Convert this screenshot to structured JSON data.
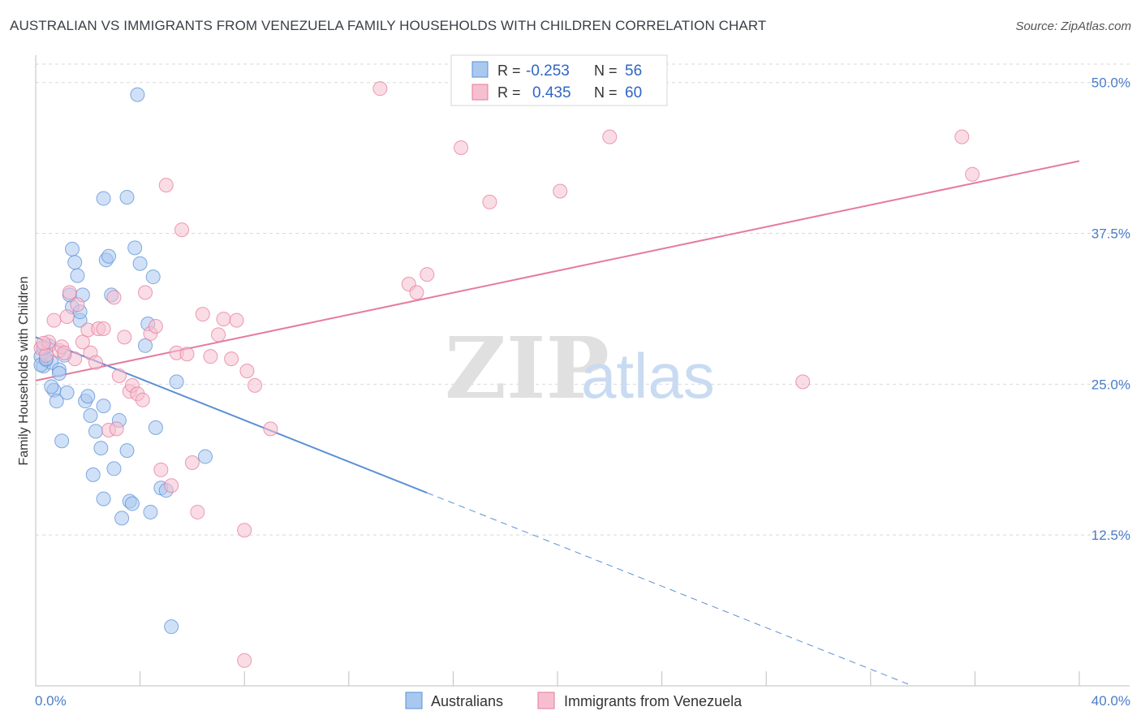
{
  "title": "AUSTRALIAN VS IMMIGRANTS FROM VENEZUELA FAMILY HOUSEHOLDS WITH CHILDREN CORRELATION CHART",
  "source": "Source: ZipAtlas.com",
  "watermark": {
    "zip": "ZIP",
    "atlas": "atlas"
  },
  "legend": {
    "rows": [
      {
        "r_label": "R =",
        "r_value": "-0.253",
        "n_label": "N =",
        "n_value": "56",
        "color": "#5b8fd6"
      },
      {
        "r_label": "R =",
        "r_value": "0.435",
        "n_label": "N =",
        "n_value": "60",
        "color": "#e57b9d"
      }
    ]
  },
  "chart_data": {
    "type": "scatter",
    "xlabel": "",
    "ylabel": "Family Households with Children",
    "xlim": [
      0,
      40
    ],
    "ylim": [
      0,
      52
    ],
    "x_tick_labels": [
      "0.0%",
      "40.0%"
    ],
    "y_ticks": [
      12.5,
      25.0,
      37.5,
      50.0
    ],
    "y_tick_labels": [
      "12.5%",
      "25.0%",
      "37.5%",
      "50.0%"
    ],
    "grid": true,
    "series": [
      {
        "name": "Australians",
        "color": "#5b8fd6",
        "fill": "#a9c8f0",
        "r": -0.253,
        "n": 56,
        "trend": {
          "x0": 0.0,
          "y0": 28.9,
          "x1": 15.0,
          "y1": 16.0,
          "dash_x1": 33.5
        },
        "points": [
          [
            0.2,
            27.3
          ],
          [
            0.3,
            26.5
          ],
          [
            0.4,
            27.0
          ],
          [
            0.5,
            28.2
          ],
          [
            0.6,
            26.8
          ],
          [
            0.2,
            26.6
          ],
          [
            0.7,
            24.5
          ],
          [
            0.8,
            23.6
          ],
          [
            0.9,
            26.2
          ],
          [
            1.1,
            27.4
          ],
          [
            1.2,
            24.3
          ],
          [
            1.0,
            20.3
          ],
          [
            1.4,
            31.4
          ],
          [
            1.3,
            32.4
          ],
          [
            1.4,
            36.2
          ],
          [
            1.5,
            35.1
          ],
          [
            1.6,
            34.0
          ],
          [
            1.7,
            30.3
          ],
          [
            1.8,
            32.4
          ],
          [
            1.9,
            23.6
          ],
          [
            2.0,
            24.0
          ],
          [
            2.1,
            22.4
          ],
          [
            2.2,
            17.5
          ],
          [
            2.3,
            21.1
          ],
          [
            2.5,
            19.7
          ],
          [
            2.6,
            23.2
          ],
          [
            2.6,
            15.5
          ],
          [
            2.7,
            35.3
          ],
          [
            2.8,
            35.6
          ],
          [
            2.9,
            32.4
          ],
          [
            3.0,
            18.0
          ],
          [
            3.2,
            22.0
          ],
          [
            3.3,
            13.9
          ],
          [
            3.5,
            19.5
          ],
          [
            3.6,
            15.3
          ],
          [
            3.7,
            15.1
          ],
          [
            3.8,
            36.3
          ],
          [
            3.9,
            49.0
          ],
          [
            4.0,
            35.0
          ],
          [
            4.2,
            28.2
          ],
          [
            4.3,
            30.0
          ],
          [
            4.4,
            14.4
          ],
          [
            4.5,
            33.9
          ],
          [
            4.6,
            21.4
          ],
          [
            4.8,
            16.4
          ],
          [
            5.0,
            16.2
          ],
          [
            5.2,
            4.9
          ],
          [
            5.4,
            25.2
          ],
          [
            6.5,
            19.0
          ],
          [
            2.6,
            40.4
          ],
          [
            3.5,
            40.5
          ],
          [
            0.4,
            27.1
          ],
          [
            0.6,
            24.8
          ],
          [
            1.7,
            31.0
          ],
          [
            0.3,
            28.0
          ],
          [
            0.9,
            25.9
          ]
        ]
      },
      {
        "name": "Immigrants from Venezuela",
        "color": "#e57b9d",
        "fill": "#f6bfd0",
        "r": 0.435,
        "n": 60,
        "trend": {
          "x0": 0.0,
          "y0": 25.3,
          "x1": 40.0,
          "y1": 43.5
        },
        "points": [
          [
            0.2,
            28.0
          ],
          [
            0.4,
            27.4
          ],
          [
            0.5,
            28.5
          ],
          [
            0.7,
            30.3
          ],
          [
            0.9,
            27.8
          ],
          [
            1.0,
            28.1
          ],
          [
            1.2,
            30.6
          ],
          [
            1.3,
            32.6
          ],
          [
            1.5,
            27.1
          ],
          [
            1.6,
            31.6
          ],
          [
            1.8,
            28.5
          ],
          [
            2.0,
            29.5
          ],
          [
            2.1,
            27.6
          ],
          [
            2.3,
            26.8
          ],
          [
            2.4,
            29.6
          ],
          [
            2.6,
            29.6
          ],
          [
            2.8,
            21.2
          ],
          [
            3.0,
            32.2
          ],
          [
            3.2,
            25.7
          ],
          [
            3.4,
            28.9
          ],
          [
            3.6,
            24.4
          ],
          [
            3.7,
            24.9
          ],
          [
            3.9,
            24.2
          ],
          [
            4.1,
            23.7
          ],
          [
            4.2,
            32.6
          ],
          [
            4.4,
            29.2
          ],
          [
            4.6,
            29.8
          ],
          [
            4.8,
            17.9
          ],
          [
            5.0,
            41.5
          ],
          [
            5.2,
            16.6
          ],
          [
            5.4,
            27.6
          ],
          [
            5.6,
            37.8
          ],
          [
            5.8,
            27.5
          ],
          [
            6.0,
            18.5
          ],
          [
            6.2,
            14.4
          ],
          [
            6.4,
            30.8
          ],
          [
            6.7,
            27.3
          ],
          [
            7.0,
            29.1
          ],
          [
            7.2,
            30.4
          ],
          [
            7.5,
            27.1
          ],
          [
            7.7,
            30.3
          ],
          [
            8.0,
            12.9
          ],
          [
            8.1,
            26.1
          ],
          [
            8.4,
            24.9
          ],
          [
            9.0,
            21.3
          ],
          [
            13.2,
            49.5
          ],
          [
            14.3,
            33.3
          ],
          [
            14.6,
            32.6
          ],
          [
            15.0,
            34.1
          ],
          [
            16.3,
            44.6
          ],
          [
            17.4,
            40.1
          ],
          [
            20.1,
            41.0
          ],
          [
            22.0,
            45.5
          ],
          [
            29.4,
            25.2
          ],
          [
            35.5,
            45.5
          ],
          [
            35.9,
            42.4
          ],
          [
            8.0,
            2.1
          ],
          [
            0.3,
            28.4
          ],
          [
            1.1,
            27.6
          ],
          [
            3.1,
            21.3
          ]
        ]
      }
    ]
  }
}
